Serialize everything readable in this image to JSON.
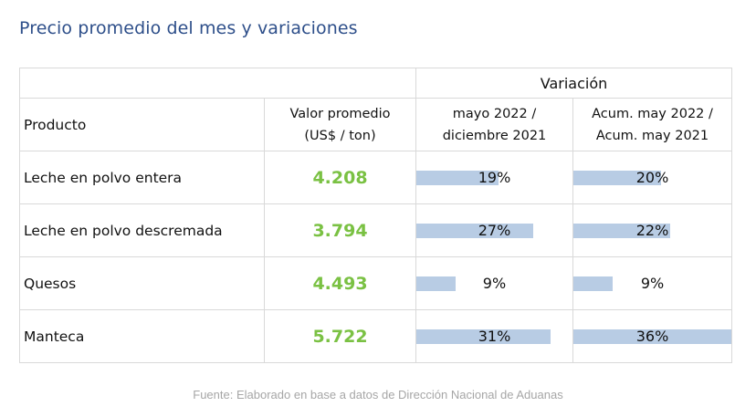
{
  "title": "Precio promedio del mes y variaciones",
  "table": {
    "group_header": "Variación",
    "col_product": "Producto",
    "col_value_line1": "Valor promedio",
    "col_value_line2": "(US$ / ton)",
    "col_var1_line1": "mayo 2022 /",
    "col_var1_line2": "diciembre 2021",
    "col_var2_line1": "Acum. may 2022 /",
    "col_var2_line2": "Acum. may 2021",
    "rows": [
      {
        "product": "Leche en polvo entera",
        "value": "4.208",
        "var1": "19%",
        "var1_pct": 19,
        "var2": "20%",
        "var2_pct": 20
      },
      {
        "product": "Leche en polvo descremada",
        "value": "3.794",
        "var1": "27%",
        "var1_pct": 27,
        "var2": "22%",
        "var2_pct": 22
      },
      {
        "product": "Quesos",
        "value": "4.493",
        "var1": "9%",
        "var1_pct": 9,
        "var2": "9%",
        "var2_pct": 9
      },
      {
        "product": "Manteca",
        "value": "5.722",
        "var1": "31%",
        "var1_pct": 31,
        "var2": "36%",
        "var2_pct": 36
      }
    ]
  },
  "colors": {
    "value_green": "#7ac143",
    "bar_blue": "#b8cce4",
    "title_blue": "#2e4f8a"
  },
  "footnote": "Fuente: Elaborado en base a datos de Dirección Nacional de Aduanas"
}
